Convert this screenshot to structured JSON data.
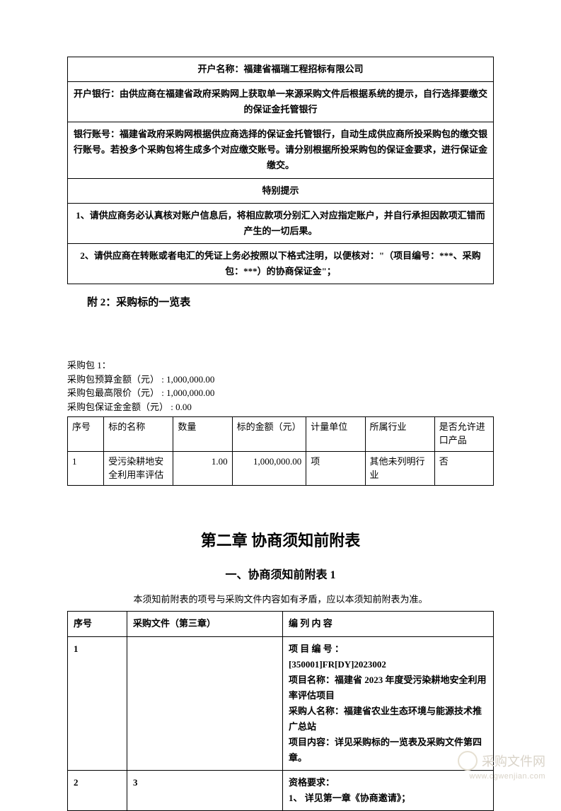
{
  "top_table": {
    "rows": [
      "开户名称：福建省福瑞工程招标有限公司",
      "开户银行：由供应商在福建省政府采购网上获取单一来源采购文件后根据系统的提示，自行选择要缴交的保证金托管银行",
      "银行账号：福建省政府采购网根据供应商选择的保证金托管银行，自动生成供应商所投采购包的缴交银行账号。若投多个采购包将生成多个对应缴交账号。请分别根据所投采购包的保证金要求，进行保证金缴交。",
      "特别提示",
      "1、请供应商务必认真核对账户信息后，将相应款项分别汇入对应指定账户，并自行承担因款项汇错而产生的一切后果。",
      "2、请供应商在转账或者电汇的凭证上务必按照以下格式注明，以便核对：\"（项目编号：***、采购包：***）的协商保证金\"；"
    ]
  },
  "attach_title": "附 2：采购标的一览表",
  "package": {
    "name": "采购包 1：",
    "budget_label": "采购包预算金额（元）",
    "budget_value": "1,000,000.00",
    "ceiling_label": "采购包最高限价（元）",
    "ceiling_value": "1,000,000.00",
    "deposit_label": "采购包保证金金额（元）",
    "deposit_value": "0.00"
  },
  "bid_table": {
    "headers": [
      "序号",
      "标的名称",
      "数量",
      "标的金额（元）",
      "计量单位",
      "所属行业",
      "是否允许进口产品"
    ],
    "row": {
      "no": "1",
      "name": "受污染耕地安全利用率评估",
      "qty": "1.00",
      "amount": "1,000,000.00",
      "unit": "项",
      "industry": "其他未列明行业",
      "import": "否"
    }
  },
  "chapter_title": "第二章  协商须知前附表",
  "section_title": "一、协商须知前附表 1",
  "note": "本须知前附表的项号与采购文件内容如有矛盾，应以本须知前附表为准。",
  "app_table": {
    "headers": [
      "序号",
      "采购文件（第三章）",
      "编 列 内 容"
    ],
    "row1": {
      "no": "1",
      "mid": "",
      "content_lines": [
        {
          "label": "项 目 编 号 ：",
          "bold": true
        },
        {
          "label": "[350001]FR[DY]2023002",
          "bold": true
        },
        {
          "label": "项目名称：福建省 2023 年度受污染耕地安全利用率评估项目",
          "bold": true,
          "prefix_bold": "项目名称："
        },
        {
          "label": "采购人名称：福建省农业生态环境与能源技术推广总站",
          "bold": true,
          "prefix_bold": "采购人名称："
        },
        {
          "label": "项目内容：详见采购标的一览表及采购文件第四章。",
          "bold": true,
          "prefix_bold": "项目内容："
        }
      ]
    },
    "row2": {
      "no": "2",
      "mid": "3",
      "content": "资格要求：\n1、 详见第一章《协商邀请》；"
    }
  },
  "watermark": {
    "text": "采购文件网",
    "url": "www.cgwenjian.com"
  },
  "colors": {
    "text": "#000000",
    "border": "#000000",
    "bg": "#ffffff",
    "watermark": "#d9d3c8"
  }
}
